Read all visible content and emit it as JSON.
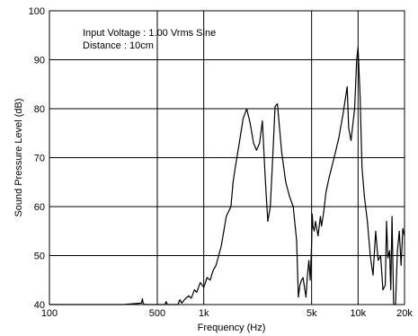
{
  "chart_data": {
    "type": "line",
    "title": "",
    "xlabel": "Frequency (Hz)",
    "ylabel": "Sound Pressure Level (dB)",
    "xscale": "log",
    "xlim": [
      100,
      20000
    ],
    "ylim": [
      40,
      100
    ],
    "grid": true,
    "x_ticks": [
      100,
      500,
      1000,
      5000,
      10000,
      20000
    ],
    "x_tick_labels": [
      "100",
      "500",
      "1k",
      "5k",
      "10k",
      "20k"
    ],
    "y_ticks": [
      40,
      50,
      60,
      70,
      80,
      90,
      100
    ],
    "y_tick_labels": [
      "40",
      "50",
      "60",
      "70",
      "80",
      "90",
      "100"
    ],
    "annotations": [
      "Input Voltage : 1.00 Vrms Sine",
      "Distance : 10cm"
    ],
    "series": [
      {
        "color": "#000000",
        "x": [
          100,
          300,
          395,
          400,
          405,
          420,
          500,
          560,
          570,
          580,
          600,
          680,
          700,
          720,
          760,
          800,
          830,
          870,
          900,
          950,
          1000,
          1050,
          1100,
          1150,
          1200,
          1300,
          1400,
          1500,
          1550,
          1600,
          1700,
          1800,
          1900,
          2000,
          2050,
          2100,
          2200,
          2300,
          2400,
          2500,
          2600,
          2700,
          2800,
          2900,
          3000,
          3100,
          3200,
          3400,
          3600,
          3800,
          4000,
          4100,
          4200,
          4300,
          4400,
          4600,
          4700,
          4800,
          4900,
          5000,
          5050,
          5100,
          5200,
          5300,
          5500,
          5700,
          5800,
          6000,
          6200,
          6500,
          7000,
          7500,
          8000,
          8500,
          8700,
          9000,
          9500,
          9800,
          10000,
          10300,
          10600,
          11000,
          11500,
          12000,
          12500,
          13000,
          13500,
          14000,
          14500,
          15000,
          15300,
          15600,
          16000,
          16300,
          16600,
          17000,
          17500,
          18000,
          18500,
          19000,
          19500,
          20000
        ],
        "y": [
          40,
          40,
          40.3,
          41.2,
          40.2,
          40,
          40,
          40,
          40.6,
          40,
          40,
          40,
          41,
          40.3,
          41.2,
          41.8,
          41.3,
          43,
          42.5,
          44.5,
          43.5,
          45.5,
          45,
          47,
          48,
          52,
          58,
          60,
          65,
          68,
          73,
          78,
          80,
          77,
          75,
          73,
          71.5,
          73,
          77.5,
          66,
          57,
          60,
          70,
          80.5,
          81,
          76,
          71,
          65,
          62,
          60,
          53,
          41.5,
          44,
          45,
          45.5,
          41.5,
          46,
          49,
          45,
          52,
          58.5,
          56,
          55,
          57,
          54,
          58,
          56,
          59,
          63,
          66,
          70,
          74,
          79,
          84.5,
          76,
          73.5,
          80,
          90,
          92.5,
          83,
          68,
          62,
          57,
          50,
          46,
          55,
          49,
          50,
          43,
          44,
          57,
          49.5,
          51,
          43,
          58,
          40,
          40,
          51,
          55,
          48,
          55.5,
          54
        ]
      }
    ]
  }
}
